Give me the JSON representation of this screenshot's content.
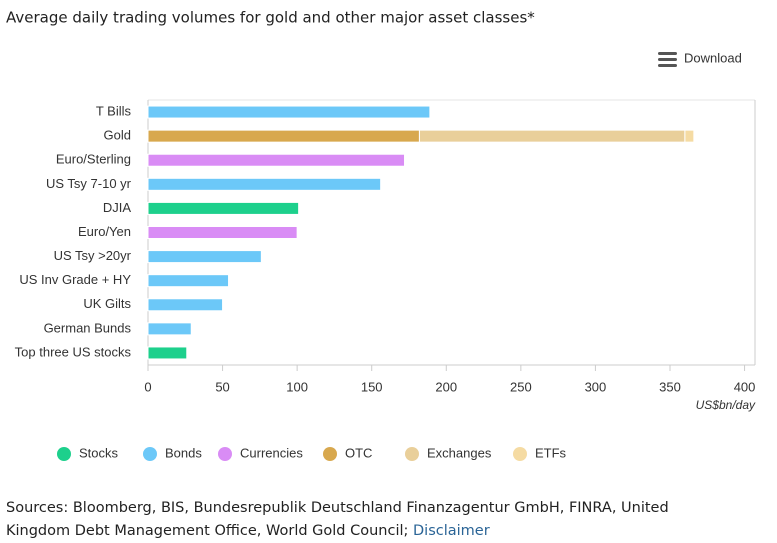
{
  "chart_data": {
    "type": "stacked-barh",
    "title": "Average daily trading volumes for gold and other major asset classes*",
    "download": "Download",
    "xlabel": "US$bn/day",
    "categories": [
      "T Bills",
      "Gold",
      "Euro/Sterling",
      "US Tsy 7-10 yr",
      "DJIA",
      "Euro/Yen",
      "US Tsy >20yr",
      "US Inv Grade + HY",
      "UK Gilts",
      "German Bunds",
      "Top three US stocks"
    ],
    "series": [
      {
        "name": "Stocks",
        "color": "#1dd08c",
        "values": [
          null,
          null,
          null,
          null,
          101,
          null,
          null,
          null,
          null,
          null,
          26
        ]
      },
      {
        "name": "Bonds",
        "color": "#6cc8f8",
        "values": [
          189,
          null,
          null,
          156,
          null,
          null,
          76,
          54,
          50,
          29,
          null
        ]
      },
      {
        "name": "Currencies",
        "color": "#d98cf5",
        "values": [
          null,
          null,
          172,
          null,
          null,
          100,
          null,
          null,
          null,
          null,
          null
        ]
      },
      {
        "name": "OTC",
        "color": "#d8a84e",
        "values": [
          null,
          182,
          null,
          null,
          null,
          null,
          null,
          null,
          null,
          null,
          null
        ]
      },
      {
        "name": "Exchanges",
        "color": "#e9cf9a",
        "values": [
          null,
          178,
          null,
          null,
          null,
          null,
          null,
          null,
          null,
          null,
          null
        ]
      },
      {
        "name": "ETFs",
        "color": "#f5dba3",
        "values": [
          null,
          6,
          null,
          null,
          null,
          null,
          null,
          null,
          null,
          null,
          null
        ]
      }
    ],
    "xlim": [
      0,
      407
    ],
    "xticks": [
      0,
      50,
      100,
      150,
      200,
      250,
      300,
      350,
      400
    ],
    "source": "Sources: Bloomberg, BIS, Bundesrepublik Deutschland Finanzagentur GmbH, FINRA, United Kingdom Debt Management Office, World Gold Council;",
    "disclaimer": "Disclaimer"
  }
}
